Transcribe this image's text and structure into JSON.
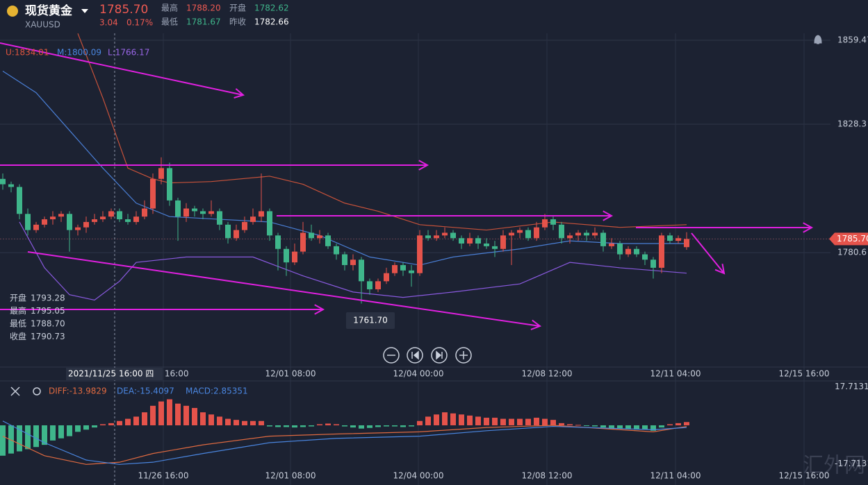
{
  "header": {
    "name": "现货黄金",
    "symbol": "XAUUSD",
    "last": "1785.70",
    "change": "3.04",
    "change_pct": "0.17%",
    "stats": [
      {
        "label": "最高",
        "value": "1788.20"
      },
      {
        "label": "开盘",
        "value": "1782.62"
      },
      {
        "label": "最低",
        "value": "1781.67"
      },
      {
        "label": "昨收",
        "value": "1782.66"
      }
    ]
  },
  "indicator": {
    "upper": "U:1834.01",
    "middle": "M:1800.09",
    "lower": "L:1766.17"
  },
  "chart": {
    "type": "candlestick",
    "ylim": [
      1738.4,
      1862.05
    ],
    "yticks": [
      {
        "value": 1859.47,
        "label": "1859.47"
      },
      {
        "value": 1828.3,
        "label": "1828.3"
      },
      {
        "value": 1780.6,
        "label": "1780.6"
      }
    ],
    "last_price": 1785.7,
    "xticks": [
      "11/26 16:00",
      "12/01 08:00",
      "12/04 00:00",
      "12/08 12:00",
      "12/11 04:00",
      "12/15 16:00"
    ],
    "crosshair_label": "2021/11/25 16:00 四",
    "low_callout": "1761.70",
    "ohlc": [
      {
        "label": "开盘",
        "value": "1793.28"
      },
      {
        "label": "最高",
        "value": "1795.05"
      },
      {
        "label": "最低",
        "value": "1788.70"
      },
      {
        "label": "收盘",
        "value": "1790.73"
      }
    ],
    "candles": [
      [
        1808,
        1810,
        1804,
        1806
      ],
      [
        1806,
        1807,
        1803,
        1805
      ],
      [
        1805,
        1806,
        1793,
        1795
      ],
      [
        1795,
        1797,
        1787,
        1789
      ],
      [
        1789,
        1792,
        1788,
        1791
      ],
      [
        1791,
        1794,
        1790,
        1793
      ],
      [
        1793,
        1796,
        1791,
        1794
      ],
      [
        1794,
        1796,
        1792,
        1795
      ],
      [
        1795,
        1796,
        1781,
        1789
      ],
      [
        1789,
        1791,
        1787,
        1790
      ],
      [
        1790,
        1794,
        1788,
        1792
      ],
      [
        1792,
        1795,
        1791,
        1793
      ],
      [
        1793,
        1796,
        1792,
        1794
      ],
      [
        1794,
        1797,
        1793,
        1796
      ],
      [
        1796,
        1797,
        1792,
        1793
      ],
      [
        1793,
        1795,
        1791,
        1792
      ],
      [
        1792,
        1796,
        1791,
        1794
      ],
      [
        1794,
        1800,
        1793,
        1797
      ],
      [
        1797,
        1810,
        1795,
        1808
      ],
      [
        1808,
        1816,
        1806,
        1812
      ],
      [
        1812,
        1814,
        1798,
        1800
      ],
      [
        1800,
        1801,
        1785,
        1794
      ],
      [
        1794,
        1799,
        1792,
        1797
      ],
      [
        1797,
        1798,
        1794,
        1796
      ],
      [
        1796,
        1797,
        1793,
        1795
      ],
      [
        1795,
        1800,
        1794,
        1796
      ],
      [
        1796,
        1797,
        1789,
        1791
      ],
      [
        1791,
        1792,
        1784,
        1786
      ],
      [
        1786,
        1791,
        1785,
        1789
      ],
      [
        1789,
        1794,
        1788,
        1792
      ],
      [
        1792,
        1797,
        1791,
        1794
      ],
      [
        1794,
        1810,
        1792,
        1796
      ],
      [
        1796,
        1797,
        1785,
        1787
      ],
      [
        1787,
        1788,
        1774,
        1782
      ],
      [
        1782,
        1783,
        1772,
        1777
      ],
      [
        1777,
        1784,
        1776,
        1781
      ],
      [
        1781,
        1792,
        1780,
        1788
      ],
      [
        1788,
        1791,
        1785,
        1786
      ],
      [
        1786,
        1789,
        1784,
        1787
      ],
      [
        1787,
        1788,
        1782,
        1783
      ],
      [
        1783,
        1784,
        1778,
        1780
      ],
      [
        1780,
        1781,
        1774,
        1776
      ],
      [
        1776,
        1780,
        1774,
        1778
      ],
      [
        1778,
        1779,
        1761.7,
        1770
      ],
      [
        1770,
        1771,
        1765,
        1767
      ],
      [
        1767,
        1771,
        1766,
        1770
      ],
      [
        1770,
        1775,
        1769,
        1773
      ],
      [
        1773,
        1777,
        1772,
        1776
      ],
      [
        1776,
        1777,
        1772,
        1774
      ],
      [
        1774,
        1776,
        1768,
        1773
      ],
      [
        1773,
        1789,
        1772,
        1787
      ],
      [
        1787,
        1789,
        1785,
        1786
      ],
      [
        1786,
        1789,
        1785,
        1787
      ],
      [
        1787,
        1790,
        1786,
        1788
      ],
      [
        1788,
        1789,
        1785,
        1786
      ],
      [
        1786,
        1787,
        1782,
        1784
      ],
      [
        1784,
        1788,
        1783,
        1786
      ],
      [
        1786,
        1787,
        1782,
        1784
      ],
      [
        1784,
        1786,
        1782,
        1783
      ],
      [
        1783,
        1785,
        1779,
        1782
      ],
      [
        1782,
        1789,
        1781,
        1787
      ],
      [
        1787,
        1789,
        1776,
        1788
      ],
      [
        1788,
        1790,
        1786,
        1789
      ],
      [
        1789,
        1790,
        1785,
        1786
      ],
      [
        1786,
        1792,
        1785,
        1790
      ],
      [
        1790,
        1795,
        1789,
        1793
      ],
      [
        1793,
        1794,
        1789,
        1791
      ],
      [
        1791,
        1792,
        1784,
        1786
      ],
      [
        1786,
        1788,
        1784,
        1787
      ],
      [
        1787,
        1789,
        1785,
        1788
      ],
      [
        1788,
        1789,
        1785,
        1787
      ],
      [
        1787,
        1790,
        1786,
        1788
      ],
      [
        1788,
        1789,
        1781,
        1783
      ],
      [
        1783,
        1786,
        1782,
        1784
      ],
      [
        1784,
        1785,
        1778,
        1780
      ],
      [
        1780,
        1783,
        1779,
        1782
      ],
      [
        1782,
        1783,
        1779,
        1780
      ],
      [
        1780,
        1781,
        1776,
        1778
      ],
      [
        1778,
        1779,
        1771,
        1775
      ],
      [
        1775,
        1788,
        1773,
        1787
      ],
      [
        1787,
        1788,
        1784,
        1785
      ],
      [
        1785,
        1787,
        1784,
        1786
      ],
      [
        1782.66,
        1788.2,
        1781.67,
        1785.7
      ]
    ],
    "bands": [
      {
        "name": "upper",
        "color": "#c8523a",
        "x": [
          9,
          12,
          15,
          18,
          20,
          25,
          32,
          36,
          41,
          45,
          50,
          58,
          66,
          74,
          82
        ],
        "values": [
          1862,
          1838,
          1812,
          1808,
          1806.5,
          1807,
          1809,
          1806,
          1799,
          1796,
          1791,
          1789,
          1792,
          1790,
          1791
        ]
      },
      {
        "name": "middle",
        "color": "#4a7fd6",
        "x": [
          0,
          4,
          8,
          12,
          16,
          20,
          26,
          32,
          38,
          44,
          50,
          54,
          62,
          68,
          74,
          82
        ],
        "values": [
          1848,
          1840,
          1826,
          1812,
          1799,
          1794,
          1793,
          1792,
          1787,
          1779,
          1776,
          1779,
          1782,
          1785,
          1784,
          1784
        ]
      },
      {
        "name": "lower",
        "color": "#8a5ae0",
        "x": [
          2,
          5,
          8,
          11,
          14,
          16,
          22,
          30,
          36,
          42,
          48,
          54,
          62,
          68,
          74,
          82
        ],
        "values": [
          1792,
          1775,
          1765,
          1763,
          1770,
          1777,
          1779,
          1779,
          1772,
          1766,
          1764,
          1766,
          1769,
          1777,
          1775,
          1773
        ]
      }
    ]
  },
  "macd": {
    "ylim": [
      -27.5,
      17.9
    ],
    "yticks": [
      {
        "value": 17.7131,
        "label": "17.7131"
      },
      {
        "value": -17.7131,
        "label": "-17.7131"
      }
    ],
    "legend": {
      "diff": "DIFF:-13.9829",
      "dea": "DEA:-15.4097",
      "macd": "MACD:2.85351"
    },
    "histogram": [
      -14,
      -13,
      -12,
      -11,
      -10,
      -9,
      -7,
      -6,
      -5,
      -3,
      -2,
      -1,
      0.5,
      1,
      2,
      3,
      4,
      6,
      9,
      11,
      12,
      10,
      9,
      8,
      6,
      5,
      4,
      3,
      2.5,
      2,
      2,
      2,
      -0.5,
      -0.8,
      -0.8,
      -1,
      -0.8,
      -0.5,
      0.5,
      0.8,
      0.5,
      -0.5,
      -1,
      -1.5,
      -1.2,
      -0.8,
      -0.5,
      -0.5,
      -0.8,
      -0.5,
      2,
      4,
      5,
      6,
      5.5,
      5,
      4.5,
      4,
      3.5,
      3.5,
      3,
      3,
      3,
      3,
      3.5,
      3,
      2.5,
      1,
      0.5,
      0.2,
      -0.3,
      -0.5,
      -1,
      -1.5,
      -1.5,
      -1.8,
      -2,
      -2,
      -2.5,
      -1,
      0.5,
      1,
      1.5
    ],
    "lines": [
      {
        "name": "DIFF",
        "color": "#e06a40",
        "x": [
          0,
          5,
          10,
          14,
          18,
          24,
          32,
          40,
          50,
          58,
          66,
          74,
          78,
          82
        ],
        "values": [
          -5,
          -14,
          -18,
          -17,
          -13,
          -9,
          -5,
          -4,
          -3,
          -1,
          0,
          -2,
          -3,
          -0.5
        ]
      },
      {
        "name": "DEA",
        "color": "#4a86e0",
        "x": [
          0,
          5,
          10,
          14,
          18,
          24,
          32,
          40,
          50,
          58,
          66,
          74,
          78,
          82
        ],
        "values": [
          2,
          -8,
          -16,
          -18,
          -17,
          -13,
          -8,
          -6,
          -5,
          -2.5,
          -0.5,
          -1.5,
          -2,
          -1
        ]
      }
    ]
  },
  "watermark": "汇外网"
}
